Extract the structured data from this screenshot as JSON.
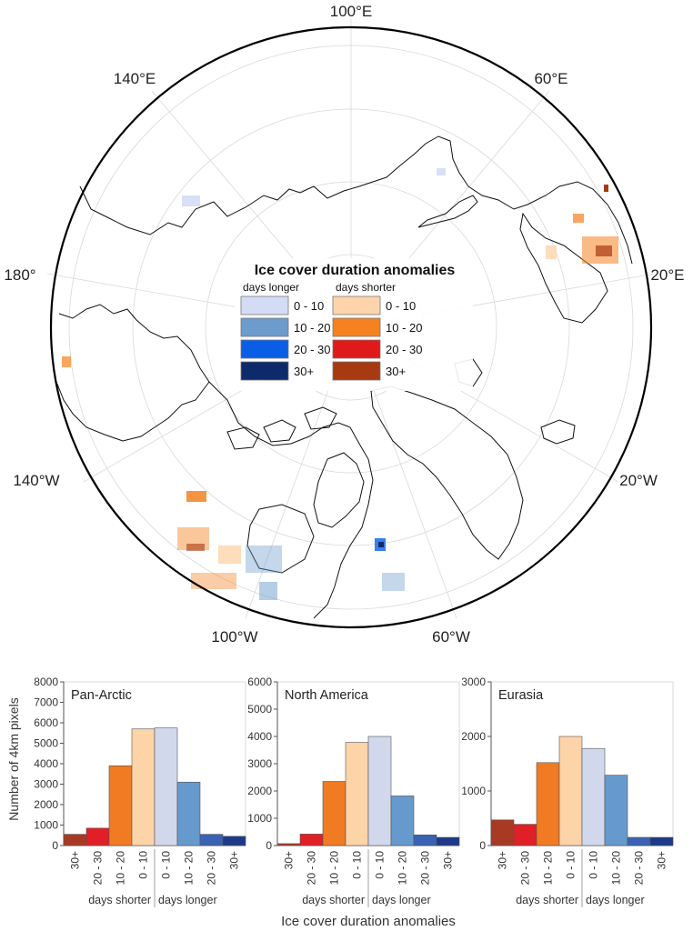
{
  "map": {
    "longitude_labels": [
      "100°E",
      "140°E",
      "60°E",
      "180°",
      "20°E",
      "140°W",
      "20°W",
      "100°W",
      "60°W"
    ],
    "legend": {
      "title": "Ice cover duration anomalies",
      "longer_heading": "days longer",
      "shorter_heading": "days shorter",
      "longer": [
        {
          "label": "0 - 10",
          "color": "#d4dcf5"
        },
        {
          "label": "10 - 20",
          "color": "#6c9bcc"
        },
        {
          "label": "20 - 30",
          "color": "#0a5ee6"
        },
        {
          "label": "30+",
          "color": "#0d2a6b"
        }
      ],
      "shorter": [
        {
          "label": "0 - 10",
          "color": "#fdd4ab"
        },
        {
          "label": "10 - 20",
          "color": "#f58220"
        },
        {
          "label": "20 - 30",
          "color": "#e01a1a"
        },
        {
          "label": "30+",
          "color": "#a83a12"
        }
      ]
    }
  },
  "chart_data": [
    {
      "type": "bar",
      "title": "Pan-Arctic",
      "ylabel": "Number of 4km pixels",
      "ylim": [
        0,
        8000
      ],
      "yticks": [
        "0",
        "1000",
        "2000",
        "3000",
        "4000",
        "5000",
        "6000",
        "7000",
        "8000"
      ],
      "categories": [
        "30+",
        "20 - 30",
        "10 - 20",
        "0 - 10",
        "0 - 10",
        "10 - 20",
        "20 - 30",
        "30+"
      ],
      "values": [
        550,
        850,
        3900,
        5700,
        5750,
        3100,
        550,
        450
      ],
      "colors": [
        "#a83a24",
        "#e01f26",
        "#f07b22",
        "#fdd3a8",
        "#d2d8ec",
        "#6699cc",
        "#3a62b4",
        "#1d3a8a"
      ],
      "group_labels": [
        "days shorter",
        "days longer"
      ]
    },
    {
      "type": "bar",
      "title": "North America",
      "ylim": [
        0,
        6000
      ],
      "yticks": [
        "0",
        "1000",
        "2000",
        "3000",
        "4000",
        "5000",
        "6000"
      ],
      "categories": [
        "30+",
        "20 - 30",
        "10 - 20",
        "0 - 10",
        "0 - 10",
        "10 - 20",
        "20 - 30",
        "30+"
      ],
      "values": [
        70,
        420,
        2350,
        3780,
        4000,
        1820,
        390,
        300
      ],
      "colors": [
        "#a83a24",
        "#e01f26",
        "#f07b22",
        "#fdd3a8",
        "#d2d8ec",
        "#6699cc",
        "#3a62b4",
        "#1d3a8a"
      ],
      "group_labels": [
        "days shorter",
        "days longer"
      ]
    },
    {
      "type": "bar",
      "title": "Eurasia",
      "ylim": [
        0,
        3000
      ],
      "yticks": [
        "0",
        "1000",
        "2000",
        "3000"
      ],
      "categories": [
        "30+",
        "20 - 30",
        "10 - 20",
        "0 - 10",
        "0 - 10",
        "10 - 20",
        "20 - 30",
        "30+"
      ],
      "values": [
        470,
        390,
        1520,
        2000,
        1780,
        1290,
        150,
        150
      ],
      "colors": [
        "#a83a24",
        "#e01f26",
        "#f07b22",
        "#fdd3a8",
        "#d2d8ec",
        "#6699cc",
        "#3a62b4",
        "#1d3a8a"
      ],
      "group_labels": [
        "days shorter",
        "days longer"
      ]
    }
  ],
  "xaxis_title": "Ice cover duration anomalies"
}
